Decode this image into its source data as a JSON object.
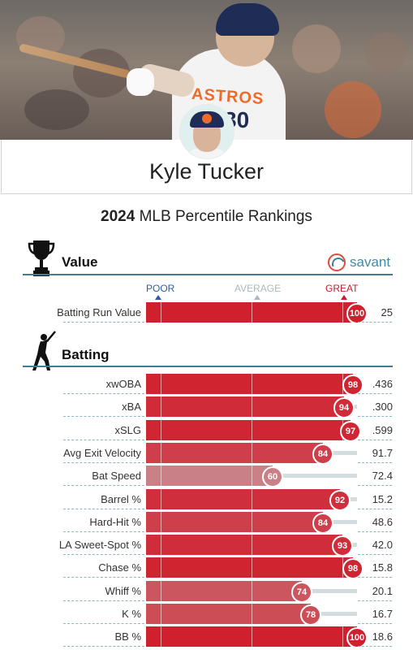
{
  "player": {
    "name": "Kyle Tucker",
    "jersey_text": "ASTROS",
    "jersey_number": "30"
  },
  "title": {
    "year": "2024",
    "rest": "MLB Percentile Rankings"
  },
  "brand": {
    "logo_text": "savant"
  },
  "scale": {
    "poor": "POOR",
    "average": "AVERAGE",
    "great": "GREAT"
  },
  "colors": {
    "accent": "#3f7d95",
    "great": "#d0202e",
    "poor_scale": "#2c5d9e",
    "avg_scale": "#a9b8bd",
    "great_scale": "#c51d2a"
  },
  "sections": {
    "value": {
      "title": "Value",
      "icon": "trophy-icon",
      "rows": [
        {
          "label": "Batting Run Value",
          "percentile": 100,
          "value": "25"
        }
      ]
    },
    "batting": {
      "title": "Batting",
      "icon": "batter-icon",
      "rows": [
        {
          "label": "xwOBA",
          "percentile": 98,
          "value": ".436"
        },
        {
          "label": "xBA",
          "percentile": 94,
          "value": ".300"
        },
        {
          "label": "xSLG",
          "percentile": 97,
          "value": ".599"
        },
        {
          "label": "Avg Exit Velocity",
          "percentile": 84,
          "value": "91.7"
        },
        {
          "label": "Bat Speed",
          "percentile": 60,
          "value": "72.4"
        },
        {
          "label": "Barrel %",
          "percentile": 92,
          "value": "15.2"
        },
        {
          "label": "Hard-Hit %",
          "percentile": 84,
          "value": "48.6"
        },
        {
          "label": "LA Sweet-Spot %",
          "percentile": 93,
          "value": "42.0"
        },
        {
          "label": "Chase %",
          "percentile": 98,
          "value": "15.8"
        },
        {
          "label": "Whiff %",
          "percentile": 74,
          "value": "20.1"
        },
        {
          "label": "K %",
          "percentile": 78,
          "value": "16.7"
        },
        {
          "label": "BB %",
          "percentile": 100,
          "value": "18.6"
        }
      ]
    }
  }
}
